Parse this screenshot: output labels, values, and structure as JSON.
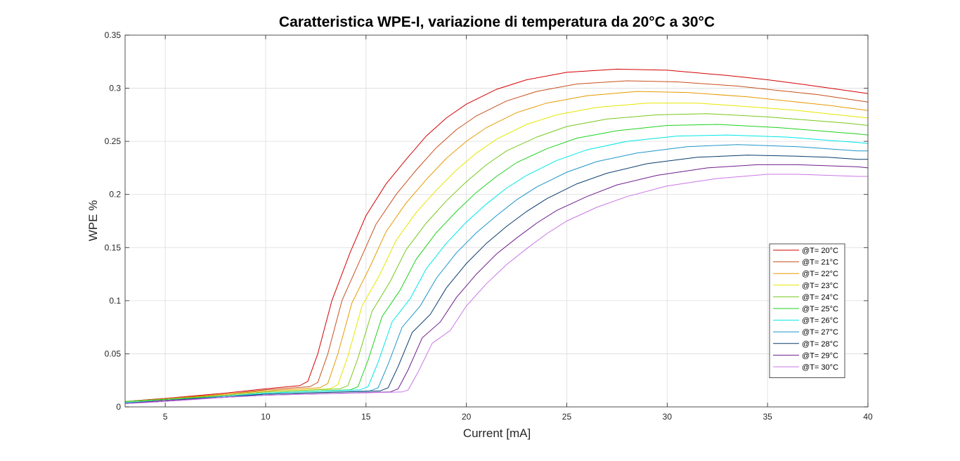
{
  "chart_data": {
    "type": "line",
    "title": "Caratteristica WPE-I, variazione di temperatura da 20°C a 30°C",
    "xlabel": "Current [mA]",
    "ylabel": "WPE %",
    "xlim": [
      3,
      40
    ],
    "ylim": [
      0,
      0.35
    ],
    "xticks": [
      5,
      10,
      15,
      20,
      25,
      30,
      35,
      40
    ],
    "yticks": [
      0,
      0.05,
      0.1,
      0.15,
      0.2,
      0.25,
      0.3,
      0.35
    ],
    "xtick_labels": [
      "5",
      "10",
      "15",
      "20",
      "25",
      "30",
      "35",
      "40"
    ],
    "ytick_labels": [
      "0",
      "0.05",
      "0.1",
      "0.15",
      "0.2",
      "0.25",
      "0.3",
      "0.35"
    ],
    "grid": true,
    "legend_position": "right",
    "series": [
      {
        "name": "@T= 20°C",
        "color": "#d40000",
        "x": [
          3,
          5,
          8,
          10,
          11.7,
          12.1,
          12.6,
          13.3,
          14.2,
          15.0,
          16.0,
          17.0,
          18.0,
          19.0,
          20.0,
          21.5,
          23,
          25,
          27.5,
          30,
          33,
          35,
          37,
          40
        ],
        "y": [
          0.005,
          0.008,
          0.013,
          0.017,
          0.02,
          0.024,
          0.05,
          0.1,
          0.145,
          0.18,
          0.21,
          0.233,
          0.255,
          0.272,
          0.285,
          0.299,
          0.308,
          0.315,
          0.318,
          0.317,
          0.312,
          0.308,
          0.303,
          0.295
        ]
      },
      {
        "name": "@T= 21°C",
        "color": "#c8501e",
        "x": [
          3,
          5,
          8,
          10,
          12.2,
          12.6,
          13.1,
          13.8,
          14.7,
          15.5,
          16.5,
          17.5,
          18.5,
          19.5,
          20.5,
          22,
          23.5,
          25.5,
          28,
          30.5,
          33.5,
          35.5,
          37.5,
          40
        ],
        "y": [
          0.005,
          0.008,
          0.012,
          0.016,
          0.019,
          0.023,
          0.05,
          0.1,
          0.138,
          0.172,
          0.2,
          0.223,
          0.244,
          0.261,
          0.274,
          0.288,
          0.297,
          0.304,
          0.307,
          0.306,
          0.302,
          0.298,
          0.294,
          0.287
        ]
      },
      {
        "name": "@T= 22°C",
        "color": "#e69a00",
        "x": [
          3,
          5,
          8,
          10,
          12.7,
          13.1,
          13.6,
          14.3,
          15.2,
          16.0,
          17.0,
          18.0,
          19.0,
          20.0,
          21.0,
          22.5,
          24,
          26,
          28.5,
          31,
          34,
          36,
          38,
          40
        ],
        "y": [
          0.005,
          0.007,
          0.012,
          0.015,
          0.018,
          0.022,
          0.05,
          0.098,
          0.132,
          0.165,
          0.192,
          0.214,
          0.234,
          0.25,
          0.263,
          0.277,
          0.286,
          0.293,
          0.297,
          0.296,
          0.292,
          0.288,
          0.284,
          0.279
        ]
      },
      {
        "name": "@T= 23°C",
        "color": "#e6e600",
        "x": [
          3,
          5,
          8,
          10,
          13.2,
          13.6,
          14.1,
          14.8,
          15.7,
          16.5,
          17.5,
          18.5,
          19.5,
          20.5,
          21.5,
          23,
          24.5,
          26.5,
          29,
          31.5,
          34.5,
          36.5,
          38.5,
          40
        ],
        "y": [
          0.005,
          0.007,
          0.011,
          0.014,
          0.017,
          0.021,
          0.048,
          0.095,
          0.125,
          0.157,
          0.183,
          0.204,
          0.223,
          0.239,
          0.252,
          0.266,
          0.275,
          0.282,
          0.286,
          0.286,
          0.282,
          0.279,
          0.275,
          0.272
        ]
      },
      {
        "name": "@T= 24°C",
        "color": "#78c81e",
        "x": [
          3,
          5,
          8,
          10,
          13.7,
          14.1,
          14.6,
          15.3,
          16.2,
          17.0,
          18.0,
          19.0,
          20.0,
          21.0,
          22.0,
          23.5,
          25,
          27,
          29.5,
          32,
          35,
          37,
          39,
          40
        ],
        "y": [
          0.005,
          0.007,
          0.011,
          0.014,
          0.017,
          0.02,
          0.046,
          0.09,
          0.118,
          0.148,
          0.173,
          0.194,
          0.212,
          0.228,
          0.241,
          0.254,
          0.264,
          0.271,
          0.275,
          0.276,
          0.273,
          0.27,
          0.267,
          0.265
        ]
      },
      {
        "name": "@T= 25°C",
        "color": "#1ed21e",
        "x": [
          3,
          5,
          8,
          10,
          14.2,
          14.6,
          15.1,
          15.8,
          16.7,
          17.5,
          18.5,
          19.5,
          20.5,
          21.5,
          22.5,
          24,
          25.5,
          27.5,
          30,
          32.5,
          35.5,
          37.5,
          39.5,
          40
        ],
        "y": [
          0.005,
          0.007,
          0.01,
          0.013,
          0.016,
          0.019,
          0.044,
          0.085,
          0.11,
          0.139,
          0.164,
          0.184,
          0.202,
          0.217,
          0.23,
          0.243,
          0.253,
          0.26,
          0.265,
          0.266,
          0.263,
          0.26,
          0.257,
          0.256
        ]
      },
      {
        "name": "@T= 26°C",
        "color": "#00e6e6",
        "x": [
          3,
          5,
          8,
          10,
          14.7,
          15.1,
          15.6,
          16.3,
          17.2,
          18.0,
          19.0,
          20.0,
          21.0,
          22.0,
          23.0,
          24.5,
          26,
          28,
          30.5,
          33,
          36,
          38,
          39.5,
          40
        ],
        "y": [
          0.004,
          0.006,
          0.01,
          0.013,
          0.016,
          0.019,
          0.042,
          0.08,
          0.102,
          0.13,
          0.154,
          0.174,
          0.191,
          0.206,
          0.218,
          0.232,
          0.242,
          0.25,
          0.255,
          0.256,
          0.254,
          0.251,
          0.249,
          0.248
        ]
      },
      {
        "name": "@T= 27°C",
        "color": "#1e96c8",
        "x": [
          3,
          5,
          8,
          10,
          15.2,
          15.6,
          16.1,
          16.8,
          17.7,
          18.5,
          19.5,
          20.5,
          21.5,
          22.5,
          23.5,
          25,
          26.5,
          28.5,
          31,
          33.5,
          36.5,
          38,
          39.5,
          40
        ],
        "y": [
          0.004,
          0.006,
          0.01,
          0.012,
          0.015,
          0.018,
          0.04,
          0.075,
          0.095,
          0.121,
          0.145,
          0.164,
          0.18,
          0.195,
          0.207,
          0.221,
          0.231,
          0.239,
          0.245,
          0.247,
          0.245,
          0.243,
          0.241,
          0.241
        ]
      },
      {
        "name": "@T= 28°C",
        "color": "#0a3c6e",
        "x": [
          3,
          5,
          8,
          10,
          15.7,
          16.1,
          16.6,
          17.3,
          18.2,
          19.0,
          20.0,
          21.0,
          22.0,
          23.0,
          24.0,
          25.5,
          27,
          29,
          31.5,
          34,
          36.5,
          38,
          39.5,
          40
        ],
        "y": [
          0.003,
          0.006,
          0.009,
          0.012,
          0.015,
          0.018,
          0.038,
          0.07,
          0.087,
          0.112,
          0.135,
          0.154,
          0.17,
          0.184,
          0.196,
          0.21,
          0.22,
          0.229,
          0.235,
          0.237,
          0.236,
          0.235,
          0.233,
          0.233
        ]
      },
      {
        "name": "@T= 29°C",
        "color": "#6e1e8c",
        "x": [
          3,
          5,
          8,
          10,
          16.2,
          16.6,
          17.1,
          17.8,
          18.7,
          19.5,
          20.5,
          21.5,
          22.5,
          23.5,
          24.5,
          26,
          27.5,
          29.5,
          32,
          34.5,
          36.5,
          38,
          39.5,
          40
        ],
        "y": [
          0.003,
          0.006,
          0.009,
          0.011,
          0.014,
          0.017,
          0.035,
          0.065,
          0.08,
          0.103,
          0.125,
          0.144,
          0.159,
          0.173,
          0.185,
          0.198,
          0.209,
          0.218,
          0.225,
          0.228,
          0.228,
          0.227,
          0.226,
          0.225
        ]
      },
      {
        "name": "@T= 30°C",
        "color": "#c878e6",
        "x": [
          3,
          5,
          8,
          10,
          16.8,
          17.1,
          17.6,
          18.3,
          19.2,
          20.0,
          21.0,
          22.0,
          23.0,
          24.0,
          25.0,
          26.5,
          28,
          30,
          32.5,
          35,
          36.5,
          38,
          39.5,
          40
        ],
        "y": [
          0.003,
          0.005,
          0.009,
          0.011,
          0.014,
          0.016,
          0.033,
          0.06,
          0.072,
          0.095,
          0.116,
          0.134,
          0.149,
          0.163,
          0.175,
          0.188,
          0.198,
          0.208,
          0.215,
          0.219,
          0.219,
          0.218,
          0.217,
          0.217
        ]
      }
    ]
  }
}
